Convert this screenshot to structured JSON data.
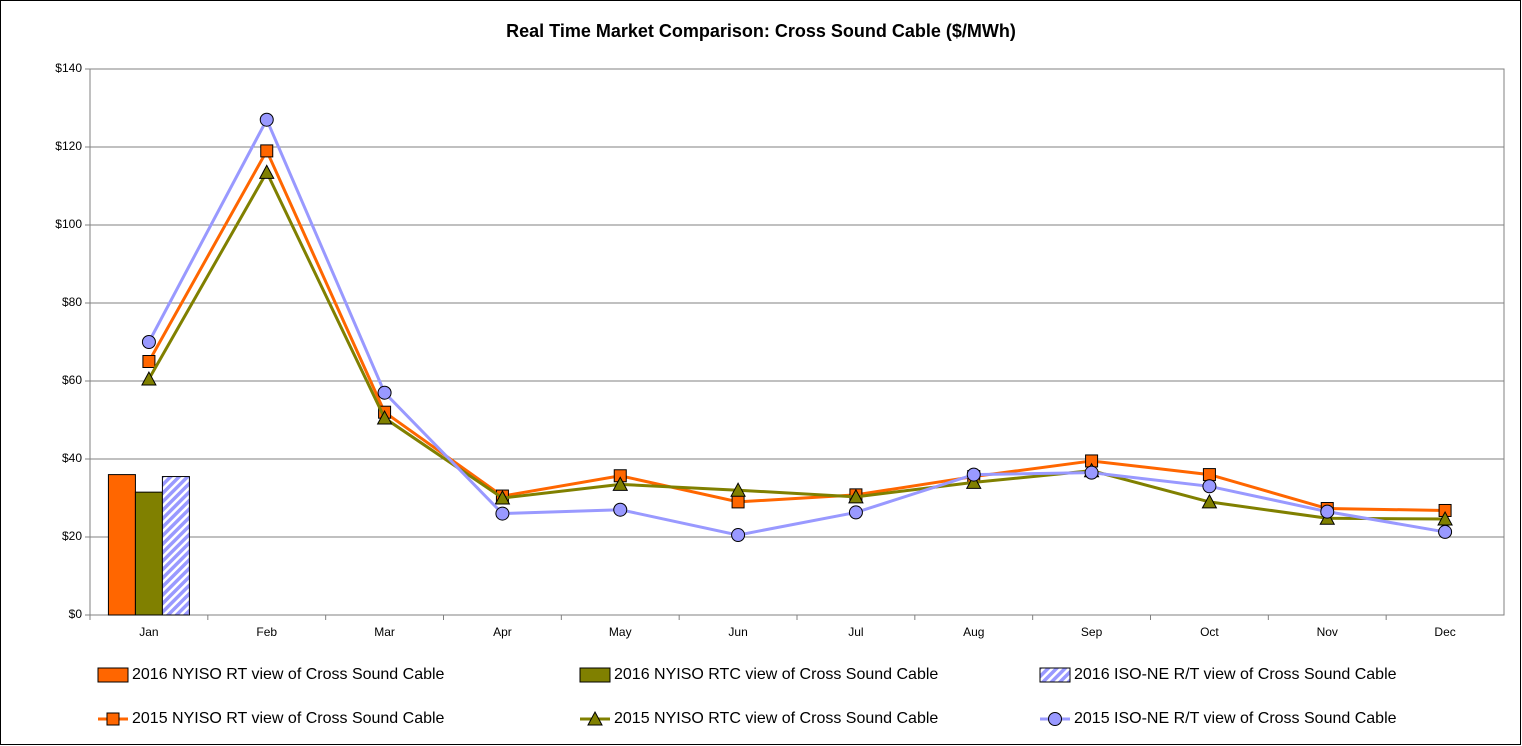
{
  "chart_data": {
    "type": "combo",
    "title": "Real Time Market Comparison: Cross Sound Cable ($/MWh)",
    "categories": [
      "Jan",
      "Feb",
      "Mar",
      "Apr",
      "May",
      "Jun",
      "Jul",
      "Aug",
      "Sep",
      "Oct",
      "Nov",
      "Dec"
    ],
    "ylim": [
      0,
      140
    ],
    "yticks": [
      {
        "value": 0,
        "label": "$0"
      },
      {
        "value": 20,
        "label": "$20"
      },
      {
        "value": 40,
        "label": "$40"
      },
      {
        "value": 60,
        "label": "$60"
      },
      {
        "value": 80,
        "label": "$80"
      },
      {
        "value": 100,
        "label": "$100"
      },
      {
        "value": 120,
        "label": "$120"
      },
      {
        "value": 140,
        "label": "$140"
      }
    ],
    "grid": true,
    "legend": "bottom",
    "series": [
      {
        "name": "2016 NYISO RT view of Cross Sound Cable",
        "type": "bar",
        "color": "#ff6600",
        "values": [
          36,
          null,
          null,
          null,
          null,
          null,
          null,
          null,
          null,
          null,
          null,
          null
        ]
      },
      {
        "name": "2016 NYISO RTC view of Cross Sound Cable",
        "type": "bar",
        "color": "#808000",
        "values": [
          31.5,
          null,
          null,
          null,
          null,
          null,
          null,
          null,
          null,
          null,
          null,
          null
        ]
      },
      {
        "name": "2016 ISO-NE R/T view of Cross Sound Cable",
        "type": "bar",
        "color": "#9999ff",
        "pattern": "hatch",
        "values": [
          35.5,
          null,
          null,
          null,
          null,
          null,
          null,
          null,
          null,
          null,
          null,
          null
        ]
      },
      {
        "name": "2015 NYISO RT view of Cross Sound Cable",
        "type": "line",
        "color": "#ff6600",
        "marker": "square",
        "values": [
          65,
          119,
          52,
          30.5,
          35.7,
          29,
          30.8,
          35.5,
          39.5,
          36,
          27.3,
          26.8
        ]
      },
      {
        "name": "2015 NYISO RTC view of Cross Sound Cable",
        "type": "line",
        "color": "#808000",
        "marker": "triangle",
        "values": [
          60.5,
          113.5,
          50.5,
          30,
          33.5,
          32,
          30.3,
          34,
          37,
          29,
          24.8,
          24.6
        ]
      },
      {
        "name": "2015 ISO-NE R/T view of Cross Sound Cable",
        "type": "line",
        "color": "#9999ff",
        "marker": "circle",
        "values": [
          70,
          127,
          57,
          26,
          27,
          20.5,
          26.3,
          36,
          36.5,
          33,
          26.5,
          21.3
        ]
      }
    ]
  }
}
